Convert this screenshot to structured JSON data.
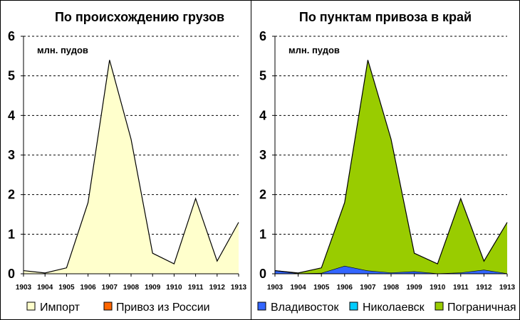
{
  "chart_data": [
    {
      "type": "area",
      "title": "По происхождению грузов",
      "unit_label": "млн. пудов",
      "x": [
        "1903",
        "1904",
        "1905",
        "1906",
        "1907",
        "1908",
        "1909",
        "1910",
        "1911",
        "1912",
        "1913"
      ],
      "ylim": [
        0,
        6
      ],
      "yticks": [
        "0",
        "1",
        "2",
        "3",
        "4",
        "5",
        "6"
      ],
      "grid": true,
      "legend_position": "bottom",
      "series": [
        {
          "name": "Импорт",
          "color": "#FFFFCC",
          "values": [
            0.08,
            0.02,
            0.15,
            1.8,
            5.4,
            3.4,
            0.52,
            0.25,
            1.9,
            0.32,
            1.3
          ]
        },
        {
          "name": "Привоз из России",
          "color": "#FF6600",
          "values": [
            0,
            0,
            0,
            0,
            0,
            0,
            0,
            0,
            0,
            0,
            0
          ]
        }
      ]
    },
    {
      "type": "area",
      "stacked": true,
      "title": "По пунктам привоза в край",
      "unit_label": "млн. пудов",
      "x": [
        "1903",
        "1904",
        "1905",
        "1906",
        "1907",
        "1908",
        "1909",
        "1910",
        "1911",
        "1912",
        "1913"
      ],
      "ylim": [
        0,
        6
      ],
      "yticks": [
        "0",
        "1",
        "2",
        "3",
        "4",
        "5",
        "6"
      ],
      "grid": true,
      "legend_position": "bottom",
      "series": [
        {
          "name": "Владивосток",
          "color": "#3366FF",
          "values": [
            0.08,
            0.01,
            0.02,
            0.2,
            0.08,
            0.03,
            0.06,
            0.01,
            0.03,
            0.1,
            0.01
          ]
        },
        {
          "name": "Николаевск",
          "color": "#00CCFF",
          "values": [
            0,
            0,
            0,
            0,
            0,
            0,
            0,
            0,
            0,
            0,
            0
          ]
        },
        {
          "name": "Пограничная",
          "color": "#99CC00",
          "values": [
            0,
            0.01,
            0.13,
            1.6,
            5.32,
            3.37,
            0.46,
            0.24,
            1.87,
            0.22,
            1.29
          ]
        }
      ]
    }
  ]
}
